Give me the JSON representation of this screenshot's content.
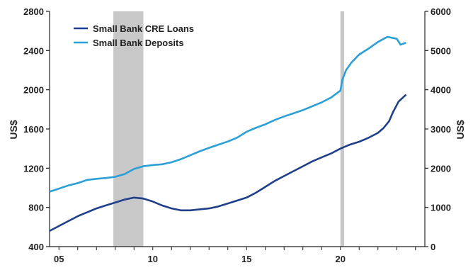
{
  "chart_data": {
    "type": "line",
    "title": "",
    "xlabel": "",
    "ylabel_left": "US$",
    "ylabel_right": "US$",
    "x_ticks": [
      "05",
      "10",
      "15",
      "20"
    ],
    "xlim": [
      2004.5,
      2024.5
    ],
    "ylim_left": [
      400,
      2800
    ],
    "yticks_left": [
      400,
      800,
      1200,
      1600,
      2000,
      2400,
      2800
    ],
    "ylim_right": [
      0,
      6000
    ],
    "yticks_right": [
      0,
      1000,
      2000,
      3000,
      4000,
      5000,
      6000
    ],
    "grid": false,
    "legend_position": "top-left",
    "recessions": [
      {
        "start": 2007.9,
        "end": 2009.5
      },
      {
        "start": 2020.0,
        "end": 2020.2
      }
    ],
    "series": [
      {
        "name": "Small Bank CRE Loans",
        "axis": "left",
        "color": "#1f3f8a",
        "x": [
          2004.5,
          2005,
          2005.5,
          2006,
          2006.5,
          2007,
          2007.5,
          2008,
          2008.5,
          2009,
          2009.5,
          2010,
          2010.5,
          2011,
          2011.5,
          2012,
          2012.5,
          2013,
          2013.5,
          2014,
          2014.5,
          2015,
          2015.5,
          2016,
          2016.5,
          2017,
          2017.5,
          2018,
          2018.5,
          2019,
          2019.5,
          2020,
          2020.5,
          2021,
          2021.5,
          2022,
          2022.3,
          2022.6,
          2022.8,
          2023.1,
          2023.5
        ],
        "values": [
          560,
          610,
          660,
          710,
          750,
          790,
          820,
          850,
          880,
          900,
          890,
          860,
          820,
          790,
          770,
          770,
          780,
          790,
          810,
          840,
          870,
          900,
          950,
          1010,
          1070,
          1120,
          1170,
          1220,
          1270,
          1310,
          1350,
          1400,
          1440,
          1470,
          1510,
          1560,
          1610,
          1680,
          1770,
          1880,
          1950
        ]
      },
      {
        "name": "Small Bank Deposits",
        "axis": "right",
        "color": "#2b9fd6",
        "x": [
          2004.5,
          2005,
          2005.5,
          2006,
          2006.5,
          2007,
          2007.5,
          2008,
          2008.5,
          2009,
          2009.5,
          2010,
          2010.5,
          2011,
          2011.5,
          2012,
          2012.5,
          2013,
          2013.5,
          2014,
          2014.5,
          2015,
          2015.5,
          2016,
          2016.5,
          2017,
          2017.5,
          2018,
          2018.5,
          2019,
          2019.5,
          2020,
          2020.1,
          2020.3,
          2020.6,
          2021,
          2021.5,
          2022,
          2022.5,
          2023,
          2023.2,
          2023.5
        ],
        "values": [
          1400,
          1480,
          1560,
          1620,
          1700,
          1730,
          1750,
          1780,
          1850,
          1980,
          2050,
          2080,
          2100,
          2150,
          2230,
          2330,
          2430,
          2520,
          2600,
          2680,
          2780,
          2930,
          3030,
          3120,
          3230,
          3320,
          3400,
          3480,
          3580,
          3680,
          3800,
          3980,
          4250,
          4500,
          4700,
          4900,
          5050,
          5220,
          5350,
          5300,
          5150,
          5200
        ]
      }
    ]
  }
}
